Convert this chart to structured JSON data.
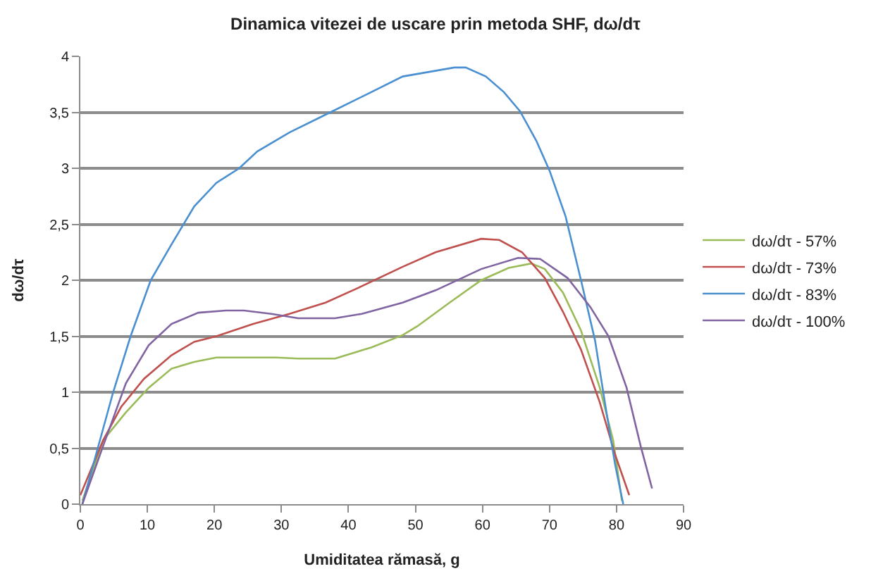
{
  "chart_data": {
    "type": "line",
    "title": "Dinamica vitezei de uscare prin metoda SHF, dω/dτ",
    "xlabel": "Umiditatea rămasă, g",
    "ylabel": "dω/dτ",
    "xlim": [
      0,
      90
    ],
    "xticks": [
      0,
      10,
      20,
      30,
      40,
      50,
      60,
      70,
      80,
      90
    ],
    "ylim": [
      0,
      4
    ],
    "yticks": [
      0,
      {
        "value": 0.5,
        "label": "0,5"
      },
      1,
      {
        "value": 1.5,
        "label": "1,5"
      },
      2,
      {
        "value": 2.5,
        "label": "2,5"
      },
      3,
      {
        "value": 3.5,
        "label": "3,5"
      },
      4
    ],
    "grid": "y",
    "legend": "right",
    "marker": "none",
    "line_style": "solid",
    "series": [
      {
        "name": "dω/dτ - 57%",
        "color": "#9bbb59",
        "x": [
          0.3,
          3.4,
          6.8,
          10.2,
          13.6,
          17,
          20.3,
          29.2,
          32.5,
          38,
          43.4,
          48.1,
          50.3,
          55.1,
          59.8,
          63.9,
          67.3,
          69.3,
          72,
          74.7,
          77.5,
          79.5,
          80.8
        ],
        "values": [
          0.03,
          0.57,
          0.82,
          1.04,
          1.21,
          1.27,
          1.31,
          1.31,
          1.3,
          1.3,
          1.4,
          1.51,
          1.59,
          1.8,
          2.0,
          2.11,
          2.15,
          2.1,
          1.89,
          1.55,
          1.04,
          0.57,
          0.03
        ]
      },
      {
        "name": "dω/dτ - 73%",
        "color": "#c0504d",
        "x": [
          0,
          3.4,
          6.1,
          9.5,
          13.6,
          17,
          20.3,
          25.8,
          31.2,
          36.6,
          41.4,
          48.1,
          53,
          59.8,
          62.5,
          65.9,
          69.3,
          72,
          74.7,
          77.5,
          79.8,
          81.9
        ],
        "values": [
          0.08,
          0.57,
          0.87,
          1.12,
          1.33,
          1.45,
          1.5,
          1.61,
          1.7,
          1.8,
          1.93,
          2.12,
          2.25,
          2.37,
          2.36,
          2.25,
          2.02,
          1.72,
          1.38,
          0.91,
          0.44,
          0.08
        ]
      },
      {
        "name": "dω/dτ - 83%",
        "color": "#4a90d0",
        "x": [
          0.3,
          4.9,
          7.5,
          10.5,
          13.6,
          17,
          20.3,
          23.7,
          26.4,
          31.2,
          37.3,
          43.4,
          48.1,
          55.8,
          57.5,
          60.5,
          63.2,
          65.6,
          68,
          70,
          72.4,
          74.7,
          76.8,
          78.5,
          79.8,
          81
        ],
        "values": [
          0,
          1.0,
          1.5,
          2.0,
          2.32,
          2.66,
          2.87,
          3.0,
          3.15,
          3.32,
          3.5,
          3.68,
          3.82,
          3.9,
          3.9,
          3.82,
          3.68,
          3.51,
          3.25,
          2.98,
          2.57,
          2.0,
          1.46,
          0.82,
          0.35,
          0
        ]
      },
      {
        "name": "dω/dτ - 100%",
        "color": "#8064a2",
        "x": [
          0.3,
          3.4,
          6.8,
          10.2,
          13.6,
          17.6,
          21.7,
          24.4,
          28.5,
          32.5,
          38,
          42,
          48.1,
          53,
          59.8,
          65.3,
          68.6,
          72.7,
          76.1,
          78.8,
          81.5,
          83.6,
          85.3
        ],
        "values": [
          0,
          0.52,
          1.08,
          1.42,
          1.61,
          1.71,
          1.73,
          1.73,
          1.7,
          1.66,
          1.66,
          1.7,
          1.8,
          1.91,
          2.1,
          2.2,
          2.19,
          2.02,
          1.76,
          1.5,
          1.04,
          0.52,
          0.14
        ]
      }
    ]
  }
}
